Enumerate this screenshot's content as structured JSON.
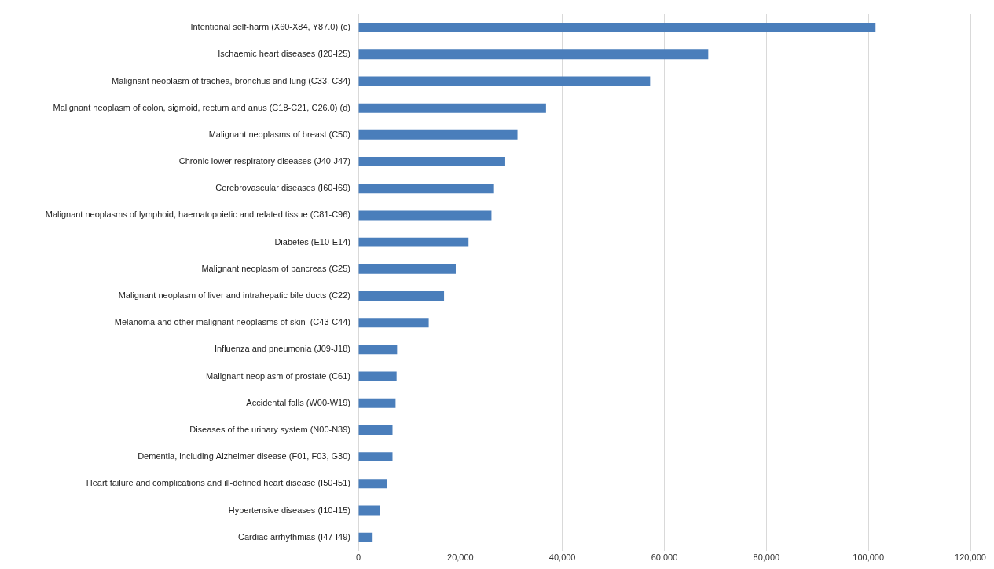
{
  "chart_data": {
    "type": "bar",
    "orientation": "horizontal",
    "categories": [
      "Intentional self-harm (X60-X84, Y87.0) (c)",
      "Ischaemic heart diseases (I20-I25)",
      "Malignant neoplasm of trachea, bronchus and lung (C33, C34)",
      "Malignant neoplasm of colon, sigmoid, rectum and anus (C18-C21, C26.0) (d)",
      "Malignant neoplasms of breast (C50)",
      "Chronic lower respiratory diseases (J40-J47)",
      "Cerebrovascular diseases (I60-I69)",
      "Malignant neoplasms of lymphoid, haematopoietic and related tissue (C81-C96)",
      "Diabetes (E10-E14)",
      "Malignant neoplasm of pancreas (C25)",
      "Malignant neoplasm of liver and intrahepatic bile ducts (C22)",
      "Melanoma and other malignant neoplasms of skin  (C43-C44)",
      "Influenza and pneumonia (J09-J18)",
      "Malignant neoplasm of prostate (C61)",
      "Accidental falls (W00-W19)",
      "Diseases of the urinary system (N00-N39)",
      "Dementia, including Alzheimer disease (F01, F03, G30)",
      "Heart failure and complications and ill-defined heart disease (I50-I51)",
      "Hypertensive diseases (I10-I15)",
      "Cardiac arrhythmias (I47-I49)"
    ],
    "values": [
      101400,
      68600,
      57200,
      36800,
      31200,
      28800,
      26600,
      26100,
      21600,
      19100,
      16800,
      13800,
      7600,
      7500,
      7300,
      6700,
      6700,
      5600,
      4200,
      2800
    ],
    "color": "#4a7ebb",
    "xlim": [
      0,
      120000
    ],
    "xticks": [
      0,
      {
        "value": 20000,
        "label": "20,000"
      },
      {
        "value": 40000,
        "label": "40,000"
      },
      {
        "value": 60000,
        "label": "60,000"
      },
      {
        "value": 80000,
        "label": "80,000"
      },
      {
        "value": 100000,
        "label": "100,000"
      },
      {
        "value": 120000,
        "label": "120,000"
      }
    ],
    "grid": true
  }
}
